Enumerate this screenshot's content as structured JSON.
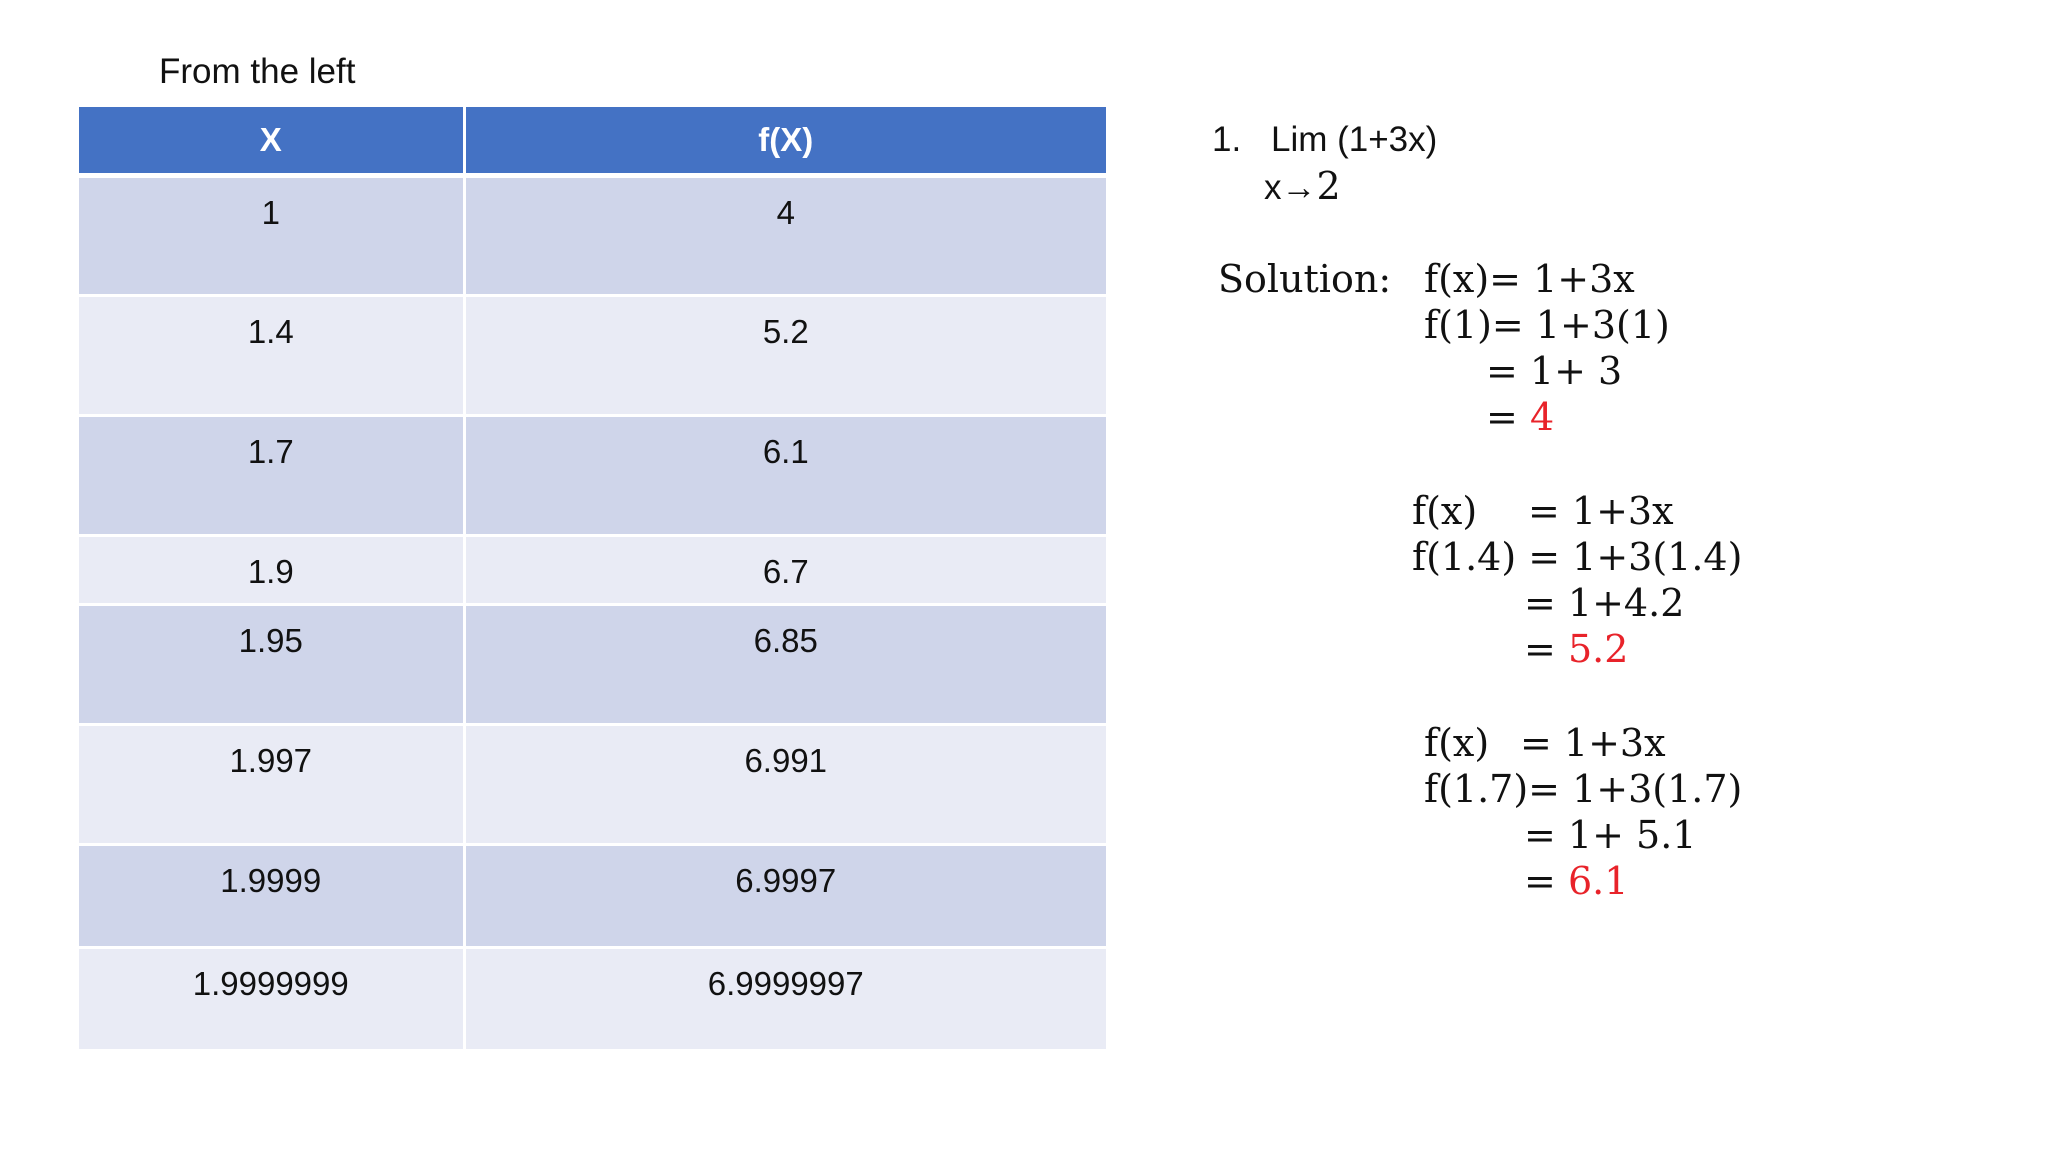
{
  "heading": "From the left",
  "table": {
    "headers": [
      "X",
      "f(X)"
    ],
    "rows": [
      [
        "1",
        "4"
      ],
      [
        "1.4",
        "5.2"
      ],
      [
        "1.7",
        "6.1"
      ],
      [
        "1.9",
        "6.7"
      ],
      [
        "1.95",
        "6.85"
      ],
      [
        "1.997",
        "6.991"
      ],
      [
        "1.9999",
        "6.9997"
      ],
      [
        "1.9999999",
        "6.9999997"
      ]
    ]
  },
  "problem": {
    "number": "1.",
    "expression": "Lim (1+3x)",
    "subscript_var": "x→",
    "subscript_value": "2"
  },
  "solution": {
    "label": "Solution:",
    "block1": {
      "line1": "f(x)= 1+3x",
      "line2": "f(1)= 1+3(1)",
      "line3": "= 1+ 3",
      "eq": "=",
      "result": "4"
    },
    "block2": {
      "line1a": "f(x)",
      "line1b": "= 1+3x",
      "line2": "f(1.4) = 1+3(1.4)",
      "line3": "= 1+4.2",
      "eq": "=",
      "result": "5.2"
    },
    "block3": {
      "line1a": "f(x)",
      "line1b": "= 1+3x",
      "line2": "f(1.7)= 1+3(1.7)",
      "line3": "= 1+ 5.1",
      "eq": "=",
      "result": "6.1"
    }
  },
  "colors": {
    "header": "#4472c4",
    "row_dark": "#cfd5ea",
    "row_light": "#e9ebf5",
    "result": "#e8232a"
  }
}
